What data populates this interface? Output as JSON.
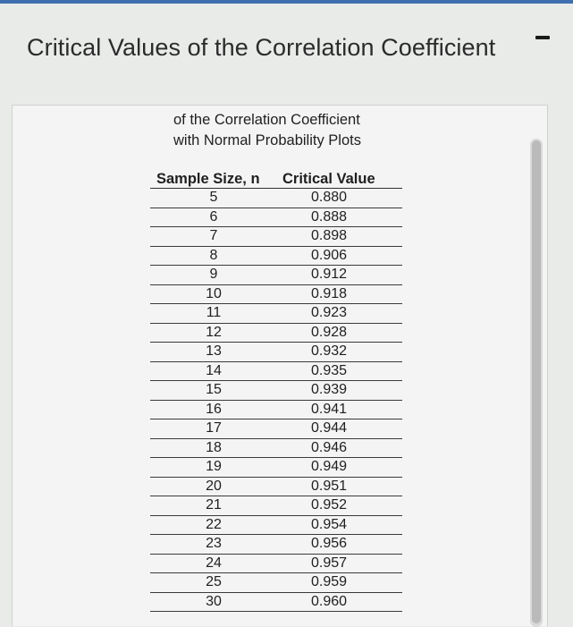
{
  "title": "Critical Values of the Correlation Coefficient",
  "table": {
    "subtitle_line1": "of the Correlation Coefficient",
    "subtitle_line2": "with Normal Probability Plots",
    "headers": [
      "Sample Size, n",
      "Critical Value"
    ],
    "rows": [
      [
        "5",
        "0.880"
      ],
      [
        "6",
        "0.888"
      ],
      [
        "7",
        "0.898"
      ],
      [
        "8",
        "0.906"
      ],
      [
        "9",
        "0.912"
      ],
      [
        "10",
        "0.918"
      ],
      [
        "11",
        "0.923"
      ],
      [
        "12",
        "0.928"
      ],
      [
        "13",
        "0.932"
      ],
      [
        "14",
        "0.935"
      ],
      [
        "15",
        "0.939"
      ],
      [
        "16",
        "0.941"
      ],
      [
        "17",
        "0.944"
      ],
      [
        "18",
        "0.946"
      ],
      [
        "19",
        "0.949"
      ],
      [
        "20",
        "0.951"
      ],
      [
        "21",
        "0.952"
      ],
      [
        "22",
        "0.954"
      ],
      [
        "23",
        "0.956"
      ],
      [
        "24",
        "0.957"
      ],
      [
        "25",
        "0.959"
      ],
      [
        "30",
        "0.960"
      ]
    ]
  },
  "colors": {
    "accent": "#3f6fb0",
    "background": "#e9ebe9",
    "panel": "#f3f4f3",
    "text": "#1f1f1f"
  },
  "icons": {
    "minimize": "minimize-icon"
  }
}
